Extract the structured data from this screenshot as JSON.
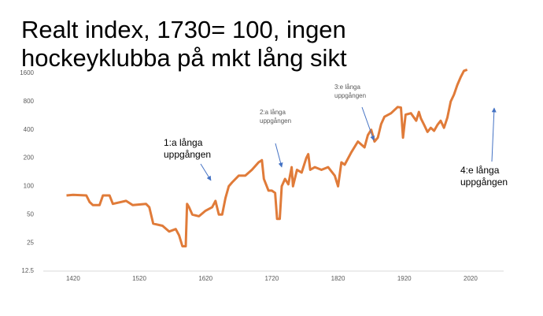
{
  "chart_data": {
    "type": "line",
    "title": [
      "Realt index, 1730= 100, ingen",
      "hockeyklubba på mkt lång sikt"
    ],
    "x": [
      1410,
      1420,
      1440,
      1445,
      1450,
      1460,
      1465,
      1475,
      1480,
      1500,
      1510,
      1530,
      1535,
      1541,
      1555,
      1565,
      1575,
      1580,
      1585,
      1590,
      1592,
      1595,
      1600,
      1610,
      1620,
      1630,
      1635,
      1640,
      1645,
      1650,
      1655,
      1660,
      1670,
      1680,
      1690,
      1700,
      1705,
      1708,
      1715,
      1720,
      1725,
      1728,
      1732,
      1735,
      1740,
      1745,
      1750,
      1752,
      1758,
      1765,
      1772,
      1775,
      1778,
      1785,
      1795,
      1805,
      1815,
      1820,
      1825,
      1830,
      1840,
      1850,
      1860,
      1865,
      1870,
      1875,
      1880,
      1885,
      1890,
      1900,
      1910,
      1915,
      1918,
      1922,
      1930,
      1938,
      1942,
      1945,
      1950,
      1955,
      1960,
      1965,
      1970,
      1975,
      1980,
      1985,
      1990,
      1995,
      2000,
      2005,
      2010,
      2015
    ],
    "series": [
      {
        "name": "Realt index",
        "color": "#e07b39",
        "values": [
          80,
          81,
          80,
          68,
          63,
          63,
          80,
          80,
          65,
          70,
          63,
          65,
          60,
          40,
          38,
          33,
          35,
          30,
          23,
          23,
          65,
          60,
          50,
          48,
          55,
          60,
          70,
          50,
          50,
          75,
          100,
          110,
          130,
          130,
          150,
          180,
          190,
          120,
          90,
          90,
          85,
          45,
          45,
          100,
          120,
          105,
          160,
          100,
          150,
          140,
          200,
          220,
          150,
          160,
          150,
          160,
          130,
          100,
          180,
          170,
          230,
          300,
          260,
          350,
          400,
          300,
          330,
          460,
          550,
          600,
          700,
          690,
          330,
          580,
          600,
          500,
          620,
          530,
          450,
          380,
          420,
          390,
          450,
          500,
          420,
          540,
          800,
          950,
          1200,
          1450,
          1700,
          1750
        ]
      }
    ],
    "xlim": [
      1375,
      2070
    ],
    "xticks": [
      1420,
      1520,
      1620,
      1720,
      1820,
      1920,
      2020
    ],
    "ylim": [
      12.5,
      1600
    ],
    "yticks": [
      12.5,
      25,
      50,
      100,
      200,
      400,
      800,
      1600
    ],
    "log_y": true,
    "grid": false,
    "annotations": [
      {
        "text": [
          "1:a långa",
          "uppgången"
        ]
      },
      {
        "text": [
          "2:a långa",
          "uppgången"
        ]
      },
      {
        "text": [
          "3:e långa",
          "uppgången"
        ]
      },
      {
        "text": [
          "4:e långa",
          "uppgången"
        ]
      }
    ]
  }
}
